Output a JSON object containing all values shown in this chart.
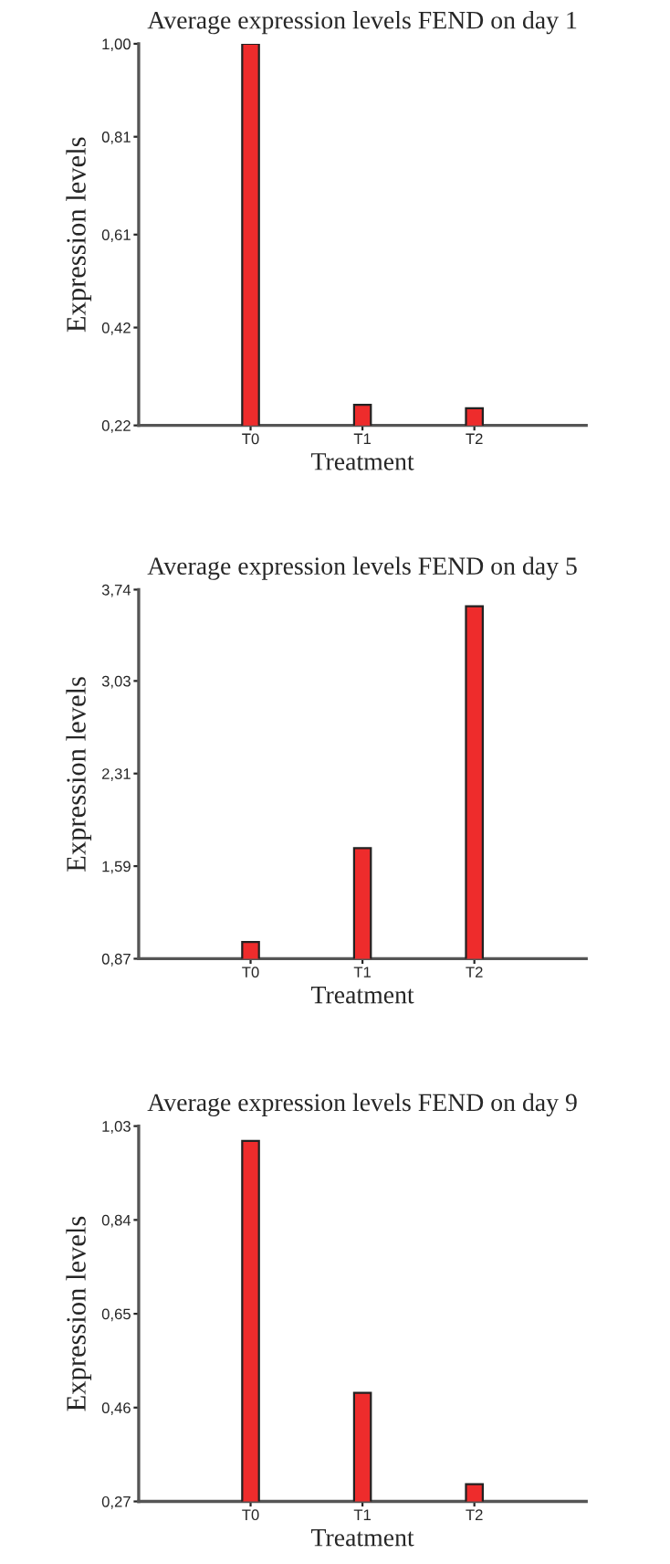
{
  "chart_data": [
    {
      "type": "bar",
      "title": "Average expression levels FEND on day 1",
      "xlabel": "Treatment",
      "ylabel": "Expression levels",
      "categories": [
        "T0",
        "T1",
        "T2"
      ],
      "values": [
        1.0,
        0.262,
        0.255
      ],
      "color": "#ee2c2c",
      "ylim": [
        0.22,
        1.0
      ],
      "yticks": [
        {
          "value": 0.22,
          "label": "0,22"
        },
        {
          "value": 0.42,
          "label": "0,42"
        },
        {
          "value": 0.61,
          "label": "0,61"
        },
        {
          "value": 0.81,
          "label": "0,81"
        },
        {
          "value": 1.0,
          "label": "1,00"
        }
      ]
    },
    {
      "type": "bar",
      "title": "Average expression levels FEND on day 5",
      "xlabel": "Treatment",
      "ylabel": "Expression levels",
      "categories": [
        "T0",
        "T1",
        "T2"
      ],
      "values": [
        1.0,
        1.73,
        3.61
      ],
      "color": "#ee2c2c",
      "ylim": [
        0.87,
        3.74
      ],
      "yticks": [
        {
          "value": 0.87,
          "label": "0,87"
        },
        {
          "value": 1.59,
          "label": "1,59"
        },
        {
          "value": 2.31,
          "label": "2,31"
        },
        {
          "value": 3.03,
          "label": "3,03"
        },
        {
          "value": 3.74,
          "label": "3,74"
        }
      ]
    },
    {
      "type": "bar",
      "title": "Average expression levels FEND on day 9",
      "xlabel": "Treatment",
      "ylabel": "Expression levels",
      "categories": [
        "T0",
        "T1",
        "T2"
      ],
      "values": [
        1.0,
        0.49,
        0.305
      ],
      "color": "#ee2c2c",
      "ylim": [
        0.27,
        1.03
      ],
      "yticks": [
        {
          "value": 0.27,
          "label": "0,27"
        },
        {
          "value": 0.46,
          "label": "0,46"
        },
        {
          "value": 0.65,
          "label": "0,65"
        },
        {
          "value": 0.84,
          "label": "0,84"
        },
        {
          "value": 1.03,
          "label": "1,03"
        }
      ]
    }
  ]
}
